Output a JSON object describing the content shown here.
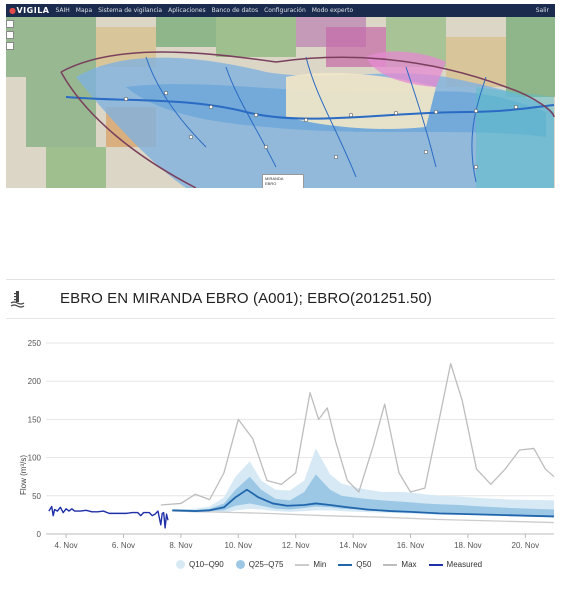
{
  "app": {
    "logo": "VIGILA",
    "nav": [
      "SAIH",
      "Mapa",
      "Sistema de vigilancia",
      "Aplicaciones",
      "Banco de datos",
      "Configuración",
      "Modo experto"
    ],
    "user": "Salir"
  },
  "map_popup": {
    "line1": "MIRANDA",
    "line2": "EBRO"
  },
  "station": {
    "title": "EBRO EN MIRANDA EBRO (A001); EBRO(201251.50)",
    "icon": "gauge-station-icon"
  },
  "colors": {
    "q10_q90": "#d6e9f5",
    "q25_q75": "#9cc8e6",
    "q50": "#2166ac",
    "min": "#cccccc",
    "max": "#bdbdbd",
    "measured": "#1f2fa8"
  },
  "chart_data": {
    "type": "line",
    "ylabel": "Flow (m³/s)",
    "xlabel": "",
    "ylim": [
      0,
      250
    ],
    "yticks": [
      0,
      50,
      100,
      150,
      200,
      250
    ],
    "xticks": [
      "4. Nov",
      "6. Nov",
      "8. Nov",
      "10. Nov",
      "12. Nov",
      "14. Nov",
      "16. Nov",
      "18. Nov",
      "20. Nov"
    ],
    "xlim_days": [
      3.3,
      21.0
    ],
    "grid": true,
    "legend_position": "bottom",
    "legend": [
      "Q10–Q90",
      "Q25–Q75",
      "Min",
      "Q50",
      "Max",
      "Measured"
    ],
    "bands": {
      "q10_q90": {
        "x": [
          7.7,
          8.5,
          9.0,
          9.5,
          9.9,
          10.4,
          10.8,
          11.3,
          11.8,
          12.3,
          12.7,
          13.2,
          13.6,
          14.2,
          15.0,
          15.8,
          16.5,
          17.0,
          17.7,
          18.5,
          19.5,
          21.0
        ],
        "low": [
          30,
          28,
          28,
          28,
          31,
          33,
          32,
          30,
          29,
          30,
          31,
          31,
          30,
          29,
          28,
          27,
          26,
          25,
          25,
          24,
          23,
          22
        ],
        "high": [
          32,
          33,
          36,
          48,
          75,
          95,
          70,
          58,
          57,
          70,
          112,
          78,
          66,
          60,
          55,
          55,
          52,
          50,
          49,
          47,
          45,
          44
        ]
      },
      "q25_q75": {
        "x": [
          7.7,
          8.5,
          9.0,
          9.5,
          9.9,
          10.4,
          10.8,
          11.3,
          11.8,
          12.3,
          12.7,
          13.2,
          13.6,
          14.2,
          15.0,
          15.8,
          16.5,
          17.0,
          17.7,
          18.5,
          19.5,
          21.0
        ],
        "low": [
          31,
          30,
          30,
          31,
          37,
          40,
          37,
          33,
          32,
          34,
          36,
          35,
          33,
          32,
          31,
          30,
          29,
          28,
          27,
          26,
          25,
          24
        ],
        "high": [
          31,
          31,
          33,
          40,
          58,
          75,
          58,
          46,
          44,
          55,
          78,
          58,
          50,
          47,
          44,
          42,
          40,
          39,
          38,
          36,
          34,
          32
        ]
      }
    },
    "series": [
      {
        "name": "Max",
        "x": [
          7.3,
          8.0,
          8.5,
          9.0,
          9.5,
          10.0,
          10.5,
          11.0,
          11.5,
          12.0,
          12.5,
          12.8,
          13.1,
          13.4,
          13.8,
          14.2,
          14.7,
          15.1,
          15.6,
          16.0,
          16.5,
          17.0,
          17.4,
          17.8,
          18.3,
          18.8,
          19.3,
          19.8,
          20.3,
          20.7,
          21.0
        ],
        "y": [
          38,
          40,
          52,
          45,
          80,
          150,
          125,
          70,
          65,
          80,
          185,
          150,
          165,
          120,
          70,
          55,
          115,
          170,
          80,
          55,
          60,
          150,
          223,
          175,
          85,
          65,
          85,
          110,
          112,
          85,
          75
        ]
      },
      {
        "name": "Min",
        "x": [
          7.7,
          9.0,
          11.0,
          13.0,
          15.0,
          17.0,
          19.0,
          21.0
        ],
        "y": [
          30,
          29,
          27,
          24,
          22,
          19,
          17,
          15
        ]
      },
      {
        "name": "Q50",
        "x": [
          7.7,
          8.5,
          9.0,
          9.5,
          9.9,
          10.3,
          10.7,
          11.2,
          11.7,
          12.3,
          12.7,
          13.2,
          13.8,
          14.5,
          15.3,
          16.0,
          17.0,
          18.0,
          19.0,
          20.0,
          21.0
        ],
        "y": [
          31,
          30,
          31,
          35,
          48,
          58,
          48,
          40,
          37,
          38,
          40,
          38,
          35,
          32,
          30,
          29,
          27,
          26,
          25,
          24,
          23
        ]
      },
      {
        "name": "Measured",
        "x": [
          3.4,
          3.5,
          3.55,
          3.6,
          3.7,
          3.8,
          3.9,
          4.0,
          4.1,
          4.2,
          4.3,
          4.5,
          4.7,
          4.9,
          5.1,
          5.3,
          5.5,
          5.7,
          5.9,
          6.1,
          6.3,
          6.5,
          6.6,
          6.7,
          6.9,
          7.0,
          7.1,
          7.2,
          7.3,
          7.35,
          7.4,
          7.45,
          7.5,
          7.55
        ],
        "y": [
          30,
          36,
          24,
          32,
          30,
          35,
          28,
          33,
          30,
          33,
          30,
          30,
          31,
          29,
          29,
          30,
          27,
          27,
          27,
          27,
          28,
          28,
          24,
          28,
          28,
          24,
          26,
          30,
          12,
          27,
          28,
          8,
          26,
          18
        ]
      }
    ]
  }
}
